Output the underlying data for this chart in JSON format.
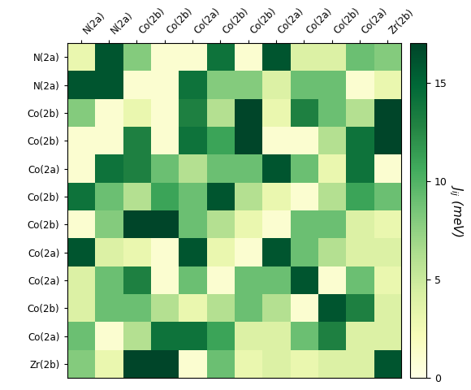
{
  "labels": [
    "N(2a)",
    "N(2a)",
    "Co(2b)",
    "Co(2b)",
    "Co(2a)",
    "Co(2b)",
    "Co(2b)",
    "Co(2a)",
    "Co(2a)",
    "Co(2b)",
    "Co(2a)",
    "Zr(2b)"
  ],
  "matrix": [
    [
      3,
      16,
      8,
      1,
      1,
      14,
      1,
      16,
      4,
      4,
      9,
      8
    ],
    [
      16,
      16,
      1,
      1,
      14,
      8,
      8,
      4,
      9,
      9,
      1,
      3
    ],
    [
      8,
      1,
      3,
      1,
      13,
      6,
      17,
      3,
      13,
      9,
      6,
      17
    ],
    [
      1,
      1,
      13,
      1,
      14,
      11,
      17,
      1,
      1,
      6,
      14,
      17
    ],
    [
      1,
      14,
      13,
      9,
      6,
      9,
      9,
      16,
      9,
      3,
      14,
      1
    ],
    [
      14,
      9,
      6,
      11,
      9,
      16,
      6,
      3,
      1,
      6,
      11,
      9
    ],
    [
      1,
      8,
      17,
      17,
      9,
      6,
      3,
      1,
      9,
      9,
      4,
      3
    ],
    [
      16,
      4,
      3,
      1,
      16,
      3,
      1,
      16,
      9,
      6,
      4,
      4
    ],
    [
      4,
      9,
      13,
      1,
      9,
      1,
      9,
      9,
      16,
      1,
      9,
      3
    ],
    [
      4,
      9,
      9,
      6,
      3,
      6,
      9,
      6,
      1,
      16,
      13,
      4
    ],
    [
      9,
      1,
      6,
      14,
      14,
      11,
      4,
      4,
      9,
      13,
      4,
      4
    ],
    [
      8,
      3,
      17,
      17,
      1,
      9,
      3,
      4,
      3,
      4,
      4,
      16
    ]
  ],
  "vmin": 0,
  "vmax": 17,
  "cmap": "YlGn",
  "colorbar_label": "$J_{ij}$ (meV)",
  "colorbar_ticks": [
    0,
    5,
    10,
    15
  ],
  "figsize": [
    5.8,
    4.8
  ],
  "dpi": 100
}
